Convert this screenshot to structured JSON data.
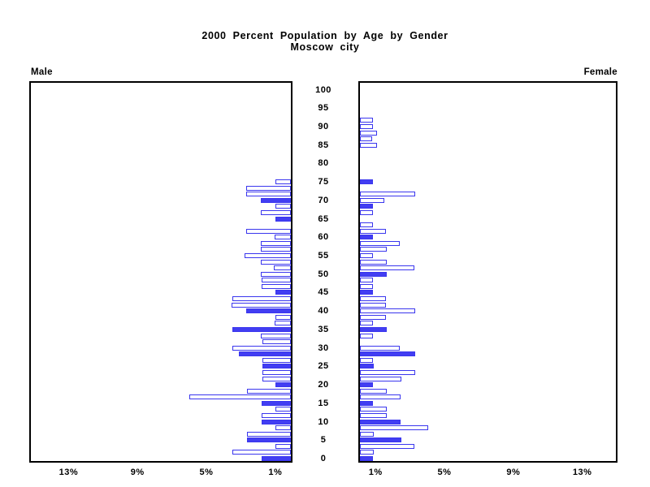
{
  "title": {
    "line1": "2000 Percent Population by Age by Gender",
    "line2": "Moscow city"
  },
  "panels": {
    "male_label": "Male",
    "female_label": "Female"
  },
  "age_axis": {
    "labels": [
      "0",
      "5",
      "10",
      "15",
      "20",
      "25",
      "30",
      "35",
      "40",
      "45",
      "50",
      "55",
      "60",
      "65",
      "70",
      "75",
      "80",
      "85",
      "90",
      "95",
      "100"
    ]
  },
  "x_axis": {
    "unit": "%",
    "male_ticks": [
      {
        "label": "13%",
        "pct": 13
      },
      {
        "label": "9%",
        "pct": 9
      },
      {
        "label": "5%",
        "pct": 5
      },
      {
        "label": "1%",
        "pct": 1
      }
    ],
    "female_ticks": [
      {
        "label": "1%",
        "pct": 1
      },
      {
        "label": "5%",
        "pct": 5
      },
      {
        "label": "9%",
        "pct": 9
      },
      {
        "label": "13%",
        "pct": 13
      }
    ]
  },
  "colors": {
    "bar_blue": "#3a36ee",
    "bar_fill_solid": "#423ef2",
    "frame": "#000000",
    "background": "#ffffff"
  },
  "chart_data": {
    "type": "bar",
    "variant": "population-pyramid",
    "title": "2000 Percent Population by Age by Gender",
    "subtitle": "Moscow city",
    "value_unit": "percent of population",
    "axis_note": "age slots 0-60 bottom-to-top, labeled every 3rd slot as ages 0,5,...,100; value axis 0 at center, ticks at 1,5,9,13 percent, max ~15.3 percent",
    "grid": false,
    "male": {
      "label": "Male",
      "values": [
        1.7,
        3.41,
        0.9,
        2.55,
        2.55,
        0.9,
        1.7,
        1.7,
        0.9,
        1.7,
        5.9,
        2.55,
        0.9,
        1.67,
        1.67,
        1.67,
        1.67,
        3.0,
        3.38,
        1.65,
        1.73,
        3.41,
        0.95,
        0.9,
        2.6,
        3.46,
        3.38,
        0.9,
        1.7,
        1.7,
        1.76,
        0.97,
        1.76,
        2.67,
        1.73,
        1.73,
        0.95,
        2.58,
        0,
        0.9,
        1.73,
        0.9,
        1.73,
        2.58,
        2.58,
        0.9,
        0,
        0,
        0,
        0,
        0,
        0,
        0,
        0,
        0,
        0,
        0,
        0,
        0,
        0,
        0
      ],
      "solid_slots": [
        0,
        3,
        6,
        9,
        12,
        15,
        17,
        21,
        24,
        27,
        39,
        42
      ]
    },
    "female": {
      "label": "Female",
      "values": [
        0.77,
        0.78,
        3.14,
        2.39,
        0.78,
        3.96,
        2.35,
        1.54,
        1.54,
        0.77,
        2.36,
        1.54,
        0.77,
        2.39,
        3.22,
        0.78,
        0.75,
        3.19,
        2.33,
        0,
        0.75,
        1.54,
        0.75,
        1.52,
        3.19,
        1.52,
        1.52,
        0.74,
        0.75,
        0.75,
        1.54,
        3.17,
        1.54,
        0.75,
        1.54,
        2.33,
        0.75,
        1.5,
        0.75,
        0,
        0.75,
        0.75,
        1.4,
        3.19,
        0,
        0.75,
        0,
        0,
        0,
        0,
        0,
        1.0,
        0.72,
        1.0,
        0.75,
        0.75,
        0,
        0,
        0,
        0,
        0
      ],
      "solid_slots": [
        0,
        3,
        6,
        9,
        12,
        15,
        17,
        21,
        27,
        30,
        36,
        41,
        45
      ]
    }
  }
}
